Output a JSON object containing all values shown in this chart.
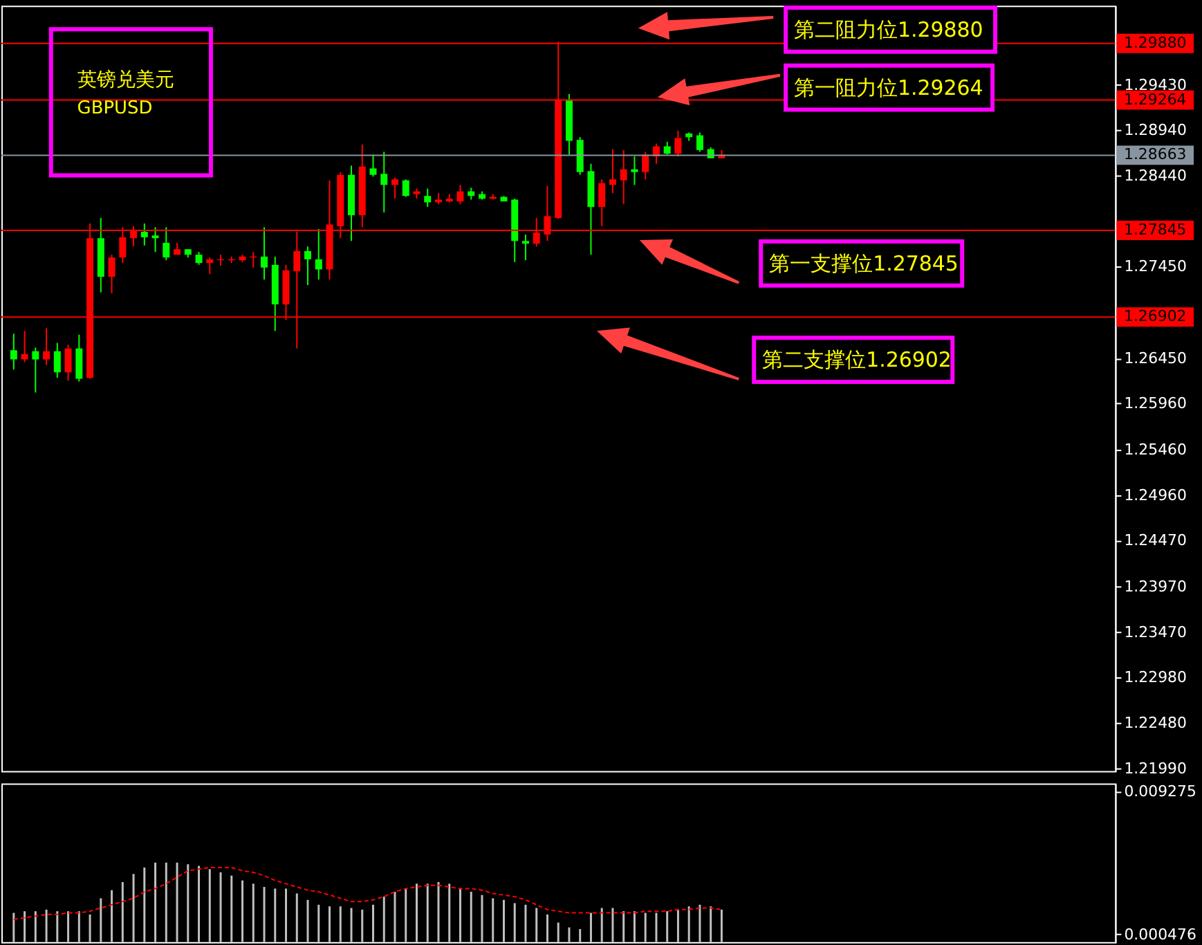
{
  "chart_data": [
    {
      "type": "candlestick",
      "title": "英镑兑美元",
      "subtitle": "GBPUSD",
      "categories": [
        null,
        null,
        null,
        null,
        null,
        null,
        null,
        null,
        null,
        null,
        null,
        null,
        null,
        null,
        null,
        null,
        null,
        null,
        null,
        null,
        null,
        null,
        null,
        null,
        null,
        null,
        null,
        null,
        null,
        null,
        null,
        null,
        null,
        null,
        null,
        null,
        null,
        null,
        null,
        null,
        null,
        null,
        null,
        null,
        null,
        null,
        null,
        null,
        null,
        null,
        null,
        null,
        null,
        null,
        null,
        null,
        null,
        null,
        null,
        null,
        null,
        null,
        null,
        null,
        null,
        null,
        null,
        null,
        null,
        null,
        null,
        null,
        null,
        null,
        null,
        null,
        null,
        null,
        null,
        null,
        null,
        null,
        null,
        null,
        null,
        null,
        null,
        null,
        null,
        null,
        null,
        null,
        null,
        null,
        null,
        null,
        null,
        null,
        null,
        null,
        null
      ],
      "ohlc": [
        [
          1.2654,
          1.2672,
          1.2633,
          1.2644
        ],
        [
          1.2644,
          1.2675,
          1.2641,
          1.265
        ],
        [
          1.2653,
          1.2657,
          1.2608,
          1.2644
        ],
        [
          1.2644,
          1.2678,
          1.2638,
          1.2653
        ],
        [
          1.2653,
          1.2662,
          1.2624,
          1.263
        ],
        [
          1.263,
          1.266,
          1.2621,
          1.2656
        ],
        [
          1.2656,
          1.2671,
          1.262,
          1.2623
        ],
        [
          1.2624,
          1.2792,
          1.2623,
          1.2776
        ],
        [
          1.2776,
          1.2798,
          1.2717,
          1.2734
        ],
        [
          1.2734,
          1.2758,
          1.2716,
          1.2755
        ],
        [
          1.2755,
          1.2788,
          1.2749,
          1.2777
        ],
        [
          1.2776,
          1.2789,
          1.2767,
          1.2784
        ],
        [
          1.2783,
          1.2792,
          1.2768,
          1.2777
        ],
        [
          1.2779,
          1.2788,
          1.2761,
          1.2776
        ],
        [
          1.2771,
          1.2788,
          1.2752,
          1.2755
        ],
        [
          1.2758,
          1.2771,
          1.2758,
          1.2764
        ],
        [
          1.2764,
          1.2764,
          1.2755,
          1.2758
        ],
        [
          1.2758,
          1.2761,
          1.2747,
          1.2749
        ],
        [
          1.2749,
          1.2755,
          1.2737,
          1.2753
        ],
        [
          1.2752,
          1.2758,
          1.2746,
          1.2753
        ],
        [
          1.2752,
          1.2756,
          1.2749,
          1.2753
        ],
        [
          1.2752,
          1.2758,
          1.275,
          1.2756
        ],
        [
          1.2755,
          1.2761,
          1.2744,
          1.2756
        ],
        [
          1.2756,
          1.2788,
          1.2731,
          1.2744
        ],
        [
          1.2747,
          1.2756,
          1.2675,
          1.2704
        ],
        [
          1.2704,
          1.2747,
          1.2687,
          1.2741
        ],
        [
          1.274,
          1.2783,
          1.2656,
          1.2762
        ],
        [
          1.2762,
          1.2767,
          1.2725,
          1.2753
        ],
        [
          1.2753,
          1.2786,
          1.2731,
          1.2742
        ],
        [
          1.2742,
          1.2839,
          1.2731,
          1.2791
        ],
        [
          1.2789,
          1.2848,
          1.2776,
          1.2845
        ],
        [
          1.2845,
          1.2855,
          1.2773,
          1.2801
        ],
        [
          1.2801,
          1.2878,
          1.2788,
          1.2854
        ],
        [
          1.2852,
          1.2867,
          1.2843,
          1.2845
        ],
        [
          1.2846,
          1.287,
          1.2804,
          1.2834
        ],
        [
          1.2834,
          1.2842,
          1.2819,
          1.284
        ],
        [
          1.2839,
          1.284,
          1.2821,
          1.2822
        ],
        [
          1.2824,
          1.283,
          1.2819,
          1.2827
        ],
        [
          1.2822,
          1.283,
          1.281,
          1.2815
        ],
        [
          1.2815,
          1.2825,
          1.2813,
          1.2818
        ],
        [
          1.2816,
          1.2824,
          1.2815,
          1.2819
        ],
        [
          1.2816,
          1.2834,
          1.2813,
          1.2827
        ],
        [
          1.2827,
          1.2831,
          1.2818,
          1.2822
        ],
        [
          1.2824,
          1.2827,
          1.2818,
          1.2819
        ],
        [
          1.2819,
          1.2824,
          1.2818,
          1.2821
        ],
        [
          1.2821,
          1.2822,
          1.2816,
          1.2816
        ],
        [
          1.2818,
          1.2819,
          1.275,
          1.2773
        ],
        [
          1.2773,
          1.278,
          1.2752,
          1.277
        ],
        [
          1.277,
          1.2798,
          1.2767,
          1.2782
        ],
        [
          1.278,
          1.2833,
          1.2773,
          1.28
        ],
        [
          1.2798,
          1.299,
          1.2797,
          1.2927
        ],
        [
          1.2927,
          1.2933,
          1.2867,
          1.2882
        ],
        [
          1.2883,
          1.2886,
          1.2845,
          1.2848
        ],
        [
          1.2849,
          1.2857,
          1.2758,
          1.281
        ],
        [
          1.281,
          1.284,
          1.2789,
          1.2836
        ],
        [
          1.2834,
          1.2873,
          1.2825,
          1.284
        ],
        [
          1.2839,
          1.2872,
          1.2813,
          1.2851
        ],
        [
          1.2851,
          1.2865,
          1.2834,
          1.2848
        ],
        [
          1.2848,
          1.287,
          1.284,
          1.2867
        ],
        [
          1.2865,
          1.2879,
          1.2857,
          1.2876
        ],
        [
          1.2876,
          1.2881,
          1.2867,
          1.2868
        ],
        [
          1.2868,
          1.2893,
          1.2865,
          1.2885
        ],
        [
          1.289,
          1.2891,
          1.2882,
          1.2886
        ],
        [
          1.2888,
          1.2891,
          1.287,
          1.2872
        ],
        [
          1.2873,
          1.2875,
          1.2863,
          1.2863
        ],
        [
          1.2863,
          1.2872,
          1.2863,
          1.2867
        ],
        null,
        null,
        null,
        null,
        null,
        null,
        null,
        null,
        null,
        null,
        null,
        null,
        null,
        null,
        null,
        null,
        null,
        null,
        null,
        null,
        null,
        null,
        null,
        null,
        null,
        null,
        null,
        null,
        null,
        null,
        null,
        null,
        null,
        null,
        null
      ],
      "colors": [
        "#00ff00",
        "#ff0000",
        "#00ff00",
        "#ff0000",
        "#00ff00",
        "#ff0000",
        "#00ff00",
        "#ff0000",
        "#00ff00",
        "#ff0000",
        "#ff0000",
        "#ff0000",
        "#00ff00",
        "#00ff00",
        "#00ff00",
        "#ff0000",
        "#00ff00",
        "#00ff00",
        "#ff0000",
        "#ff0000",
        "#ff0000",
        "#ff0000",
        "#ff0000",
        "#00ff00",
        "#00ff00",
        "#ff0000",
        "#ff0000",
        "#00ff00",
        "#00ff00",
        "#ff0000",
        "#ff0000",
        "#00ff00",
        "#ff0000",
        "#00ff00",
        "#00ff00",
        "#ff0000",
        "#00ff00",
        "#ff0000",
        "#00ff00",
        "#ff0000",
        "#ff0000",
        "#ff0000",
        "#00ff00",
        "#00ff00",
        "#ff0000",
        "#00ff00",
        "#00ff00",
        "#00ff00",
        "#ff0000",
        "#ff0000",
        "#ff0000",
        "#00ff00",
        "#00ff00",
        "#00ff00",
        "#ff0000",
        "#ff0000",
        "#ff0000",
        "#00ff00",
        "#ff0000",
        "#ff0000",
        "#00ff00",
        "#ff0000",
        "#00ff00",
        "#00ff00",
        "#00ff00",
        "#ff0000",
        null,
        null,
        null,
        null,
        null,
        null,
        null,
        null,
        null,
        null,
        null,
        null,
        null,
        null,
        null,
        null,
        null,
        null,
        null,
        null,
        null,
        null,
        null,
        null,
        null,
        null,
        null,
        null,
        null,
        null,
        null,
        null,
        null,
        null,
        null
      ],
      "ylim": [
        1.2196,
        1.3029
      ],
      "yticks": [
        {
          "value": 1.2943,
          "label": "1.29430"
        },
        {
          "value": 1.2894,
          "label": "1.28940"
        },
        {
          "value": 1.2844,
          "label": "1.28440"
        },
        {
          "value": 1.2745,
          "label": "1.27450"
        },
        {
          "value": 1.2645,
          "label": "1.26450"
        },
        {
          "value": 1.2596,
          "label": "1.25960"
        },
        {
          "value": 1.2546,
          "label": "1.25460"
        },
        {
          "value": 1.2496,
          "label": "1.24960"
        },
        {
          "value": 1.2447,
          "label": "1.24470"
        },
        {
          "value": 1.2397,
          "label": "1.23970"
        },
        {
          "value": 1.2347,
          "label": "1.23470"
        },
        {
          "value": 1.2298,
          "label": "1.22980"
        },
        {
          "value": 1.2248,
          "label": "1.22480"
        },
        {
          "value": 1.2199,
          "label": "1.21990"
        }
      ],
      "tick_labels": "y",
      "grid": false,
      "ref_lines": [
        {
          "axis": "y",
          "value": 1.2988,
          "label": "1.29880",
          "color": "#ff0000"
        },
        {
          "axis": "y",
          "value": 1.29264,
          "label": "1.29264",
          "color": "#ff0000"
        },
        {
          "axis": "y",
          "value": 1.28663,
          "label": "1.28663",
          "color": "#8895a0"
        },
        {
          "axis": "y",
          "value": 1.27845,
          "label": "1.27845",
          "color": "#ff0000"
        },
        {
          "axis": "y",
          "value": 1.26902,
          "label": "1.26902",
          "color": "#ff0000"
        }
      ],
      "annotations": [
        {
          "text": "第二阻力位1.29880",
          "y": 1.2988
        },
        {
          "text": "第一阻力位1.29264",
          "y": 1.29264
        },
        {
          "text": "第一支撑位1.27845",
          "y": 1.27845
        },
        {
          "text": "第二支撑位1.26902",
          "y": 1.26902
        }
      ]
    },
    {
      "type": "bar",
      "categories": [
        null,
        null,
        null,
        null,
        null,
        null,
        null,
        null,
        null,
        null,
        null,
        null,
        null,
        null,
        null,
        null,
        null,
        null,
        null,
        null,
        null,
        null,
        null,
        null,
        null,
        null,
        null,
        null,
        null,
        null,
        null,
        null,
        null,
        null,
        null,
        null,
        null,
        null,
        null,
        null,
        null,
        null,
        null,
        null,
        null,
        null,
        null,
        null,
        null,
        null,
        null,
        null,
        null,
        null,
        null,
        null,
        null,
        null,
        null,
        null,
        null,
        null,
        null,
        null,
        null,
        null,
        null,
        null,
        null,
        null,
        null,
        null,
        null,
        null,
        null,
        null,
        null,
        null,
        null,
        null,
        null,
        null,
        null,
        null,
        null,
        null,
        null,
        null,
        null,
        null,
        null,
        null,
        null,
        null,
        null,
        null,
        null,
        null,
        null,
        null,
        null
      ],
      "series": [
        {
          "type": "bar",
          "color": "#c0c0c0",
          "values": [
            0.0018,
            0.0019,
            0.0019,
            0.002,
            0.0019,
            0.0019,
            0.0019,
            0.0017,
            0.0027,
            0.0032,
            0.0037,
            0.0042,
            0.0046,
            0.0049,
            0.0049,
            0.0049,
            0.0048,
            0.0047,
            0.0045,
            0.0043,
            0.0041,
            0.0038,
            0.0036,
            0.0034,
            0.0033,
            0.0033,
            0.003,
            0.0026,
            0.0023,
            0.0022,
            0.0022,
            0.0021,
            0.002,
            0.0023,
            0.0028,
            0.0031,
            0.0033,
            0.0036,
            0.0036,
            0.0037,
            0.0036,
            0.0033,
            0.0031,
            0.0029,
            0.0027,
            0.0026,
            0.0024,
            0.0023,
            0.0021,
            0.0017,
            0.0012,
            0.0009,
            0.0008,
            0.0018,
            0.0021,
            0.0021,
            0.0019,
            0.0019,
            0.0018,
            0.0018,
            0.0019,
            0.002,
            0.0022,
            0.0023,
            0.0022,
            0.002,
            null,
            null,
            null,
            null,
            null,
            null,
            null,
            null,
            null,
            null,
            null,
            null,
            null,
            null,
            null,
            null,
            null,
            null,
            null,
            null,
            null,
            null,
            null,
            null,
            null,
            null,
            null,
            null,
            null,
            null,
            null,
            null,
            null,
            null,
            null
          ]
        },
        {
          "type": "line",
          "color": "#ff0000",
          "line_style": "dashed",
          "values": [
            0.0014,
            0.0015,
            0.0016,
            0.0017,
            0.0017,
            0.0018,
            0.0018,
            0.0019,
            0.0021,
            0.0023,
            0.0025,
            0.0027,
            0.0031,
            0.0033,
            0.0036,
            0.004,
            0.0044,
            0.0045,
            0.0046,
            0.0046,
            0.0046,
            0.0044,
            0.0043,
            0.0041,
            0.0038,
            0.0036,
            0.0034,
            0.0032,
            0.0031,
            0.0029,
            0.0027,
            0.0025,
            0.0025,
            0.0026,
            0.0028,
            0.0031,
            0.0033,
            0.0034,
            0.0035,
            0.0035,
            0.0034,
            0.0033,
            0.0033,
            0.0032,
            0.003,
            0.0029,
            0.0028,
            0.0026,
            0.0023,
            0.002,
            0.0019,
            0.0018,
            0.0018,
            0.0018,
            0.0018,
            0.0018,
            0.0018,
            0.0018,
            0.0019,
            0.0019,
            0.0019,
            0.002,
            0.002,
            0.0021,
            0.0021,
            0.002,
            null,
            null,
            null,
            null,
            null,
            null,
            null,
            null,
            null,
            null,
            null,
            null,
            null,
            null,
            null,
            null,
            null,
            null,
            null,
            null,
            null,
            null,
            null,
            null,
            null,
            null,
            null,
            null,
            null,
            null,
            null,
            null,
            null,
            null,
            null
          ]
        }
      ],
      "ylim": [
        0,
        0.00979
      ],
      "yticks": [
        {
          "value": 0.009275,
          "label": "0.009275"
        },
        {
          "value": 0.000476,
          "label": "0.000476"
        }
      ],
      "tick_labels": "y",
      "grid": false
    }
  ]
}
